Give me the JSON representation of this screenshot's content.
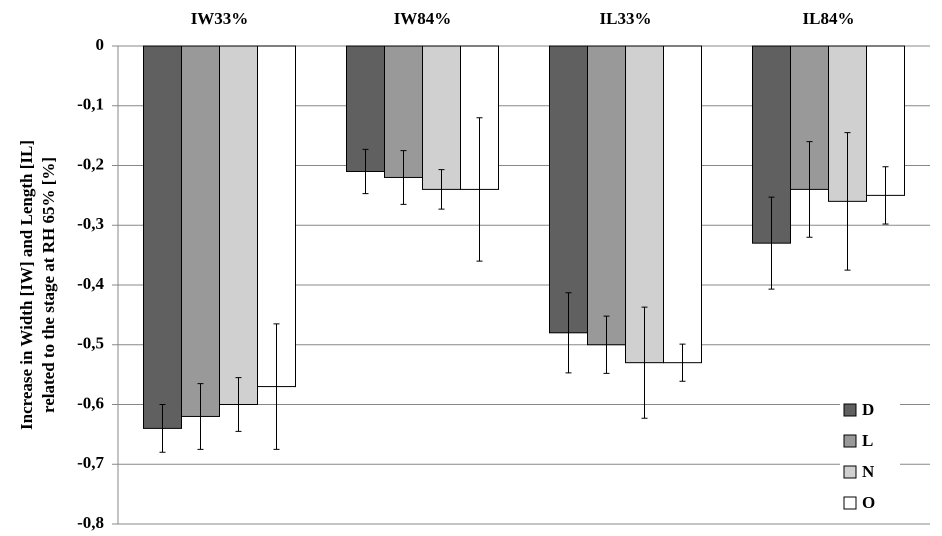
{
  "chart_data": {
    "type": "bar",
    "y_label": [
      "Increase in Width [IW] and Length [IL]",
      "related to the stage at RH 65% [%]"
    ],
    "categories": [
      "IW33%",
      "IW84%",
      "IL33%",
      "IL84%"
    ],
    "series": [
      {
        "name": "D",
        "color": "#606060",
        "values": [
          -0.64,
          -0.21,
          -0.48,
          -0.33
        ],
        "errors": [
          0.04,
          0.037,
          0.067,
          0.077
        ]
      },
      {
        "name": "L",
        "color": "#999999",
        "values": [
          -0.62,
          -0.22,
          -0.5,
          -0.24
        ],
        "errors": [
          0.055,
          0.045,
          0.048,
          0.08
        ]
      },
      {
        "name": "N",
        "color": "#d0d0d0",
        "values": [
          -0.6,
          -0.24,
          -0.53,
          -0.26
        ],
        "errors": [
          0.045,
          0.033,
          0.093,
          0.115
        ]
      },
      {
        "name": "O",
        "color": "#ffffff",
        "values": [
          -0.57,
          -0.24,
          -0.53,
          -0.25
        ],
        "errors": [
          0.105,
          0.12,
          0.031,
          0.048
        ]
      }
    ],
    "ylim": [
      -0.8,
      0
    ],
    "yticks": [
      0,
      {
        "value": -0.1,
        "label": "-0,1"
      },
      {
        "value": -0.2,
        "label": "-0,2"
      },
      {
        "value": -0.3,
        "label": "-0,3"
      },
      {
        "value": -0.4,
        "label": "-0,4"
      },
      {
        "value": -0.5,
        "label": "-0,5"
      },
      {
        "value": -0.6,
        "label": "-0,6"
      },
      {
        "value": -0.7,
        "label": "-0,7"
      },
      {
        "value": -0.8,
        "label": "-0,8"
      }
    ],
    "grid": true,
    "legend": "lower right"
  }
}
